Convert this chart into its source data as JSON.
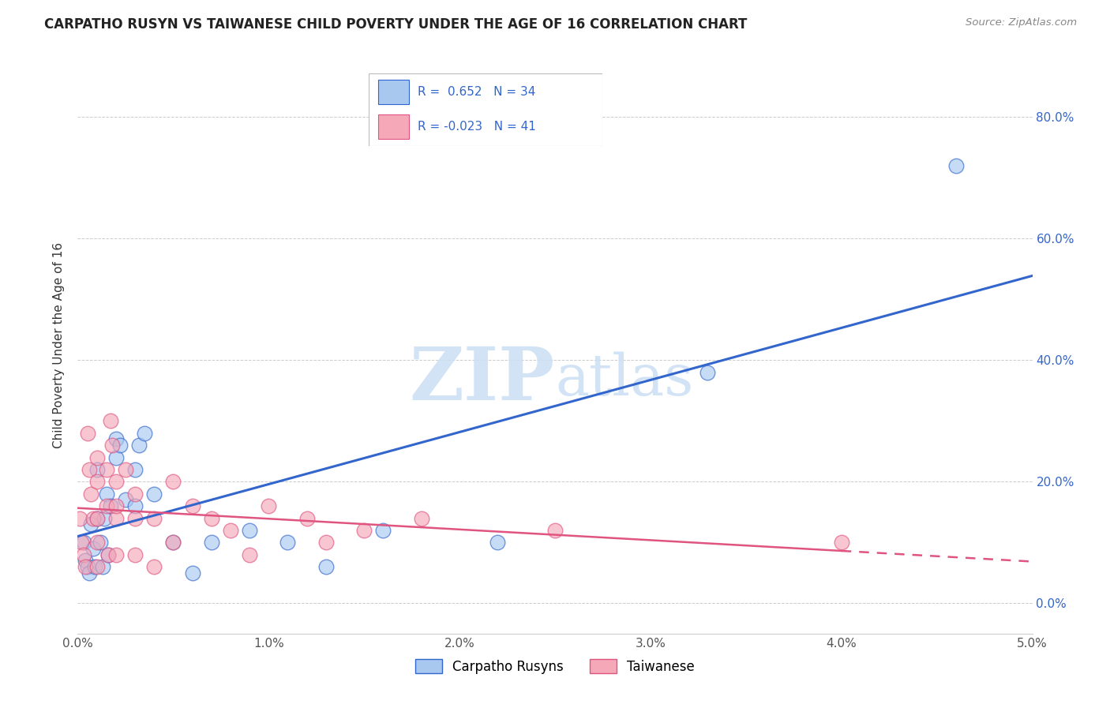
{
  "title": "CARPATHO RUSYN VS TAIWANESE CHILD POVERTY UNDER THE AGE OF 16 CORRELATION CHART",
  "source": "Source: ZipAtlas.com",
  "ylabel": "Child Poverty Under the Age of 16",
  "legend_label1": "Carpatho Rusyns",
  "legend_label2": "Taiwanese",
  "r1": 0.652,
  "n1": 34,
  "r2": -0.023,
  "n2": 41,
  "xlim": [
    0.0,
    0.05
  ],
  "ylim": [
    -0.05,
    0.9
  ],
  "yticks": [
    0.0,
    0.2,
    0.4,
    0.6,
    0.8
  ],
  "ytick_labels": [
    "0.0%",
    "20.0%",
    "40.0%",
    "60.0%",
    "80.0%"
  ],
  "xticks": [
    0.0,
    0.01,
    0.02,
    0.03,
    0.04,
    0.05
  ],
  "xtick_labels": [
    "0.0%",
    "1.0%",
    "2.0%",
    "3.0%",
    "4.0%",
    "5.0%"
  ],
  "color_blue": "#A8C8F0",
  "color_pink": "#F5A8B8",
  "line_blue": "#3366CC",
  "line_pink": "#E05580",
  "watermark_zip": "ZIP",
  "watermark_atlas": "atlas",
  "carpatho_x": [
    0.0003,
    0.0004,
    0.0005,
    0.0006,
    0.0007,
    0.0008,
    0.0009,
    0.001,
    0.001,
    0.0012,
    0.0013,
    0.0014,
    0.0015,
    0.0016,
    0.0017,
    0.002,
    0.002,
    0.0022,
    0.0025,
    0.003,
    0.003,
    0.0032,
    0.0035,
    0.004,
    0.005,
    0.006,
    0.007,
    0.009,
    0.011,
    0.013,
    0.016,
    0.022,
    0.033,
    0.046
  ],
  "carpatho_y": [
    0.1,
    0.07,
    0.06,
    0.05,
    0.13,
    0.09,
    0.06,
    0.14,
    0.22,
    0.1,
    0.06,
    0.14,
    0.18,
    0.08,
    0.16,
    0.24,
    0.27,
    0.26,
    0.17,
    0.22,
    0.16,
    0.26,
    0.28,
    0.18,
    0.1,
    0.05,
    0.1,
    0.12,
    0.1,
    0.06,
    0.12,
    0.1,
    0.38,
    0.72
  ],
  "taiwanese_x": [
    0.0001,
    0.0002,
    0.0003,
    0.0004,
    0.0005,
    0.0006,
    0.0007,
    0.0008,
    0.001,
    0.001,
    0.001,
    0.001,
    0.001,
    0.0015,
    0.0015,
    0.0016,
    0.0017,
    0.0018,
    0.002,
    0.002,
    0.002,
    0.002,
    0.0025,
    0.003,
    0.003,
    0.003,
    0.004,
    0.004,
    0.005,
    0.005,
    0.006,
    0.007,
    0.008,
    0.009,
    0.01,
    0.012,
    0.013,
    0.015,
    0.018,
    0.025,
    0.04
  ],
  "taiwanese_y": [
    0.14,
    0.1,
    0.08,
    0.06,
    0.28,
    0.22,
    0.18,
    0.14,
    0.24,
    0.2,
    0.14,
    0.1,
    0.06,
    0.22,
    0.16,
    0.08,
    0.3,
    0.26,
    0.2,
    0.14,
    0.08,
    0.16,
    0.22,
    0.18,
    0.14,
    0.08,
    0.14,
    0.06,
    0.2,
    0.1,
    0.16,
    0.14,
    0.12,
    0.08,
    0.16,
    0.14,
    0.1,
    0.12,
    0.14,
    0.12,
    0.1
  ]
}
